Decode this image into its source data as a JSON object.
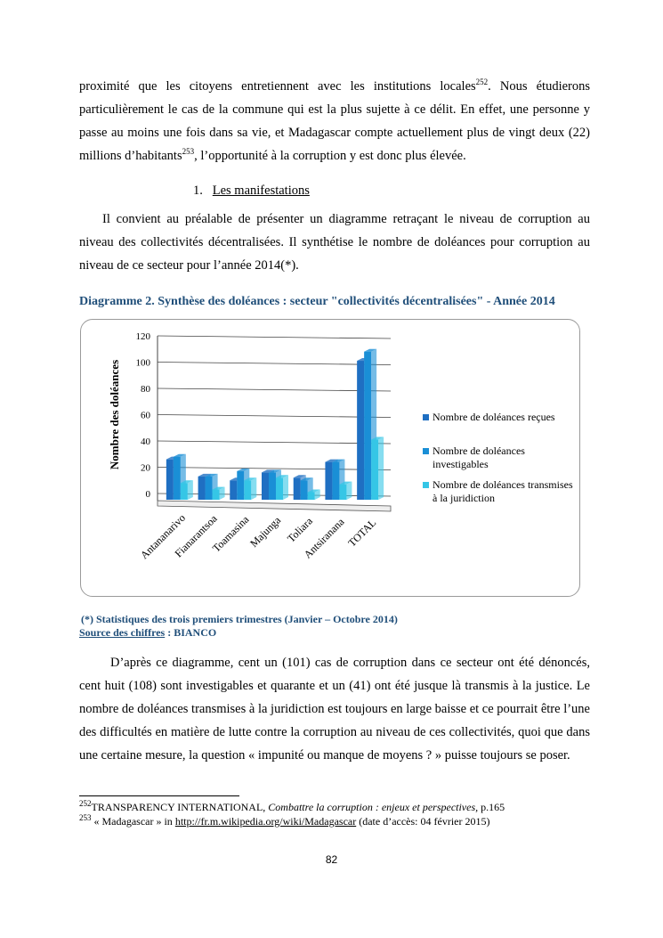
{
  "intro": {
    "text_1": "proximité que les citoyens entretiennent avec les institutions locales",
    "sup_1": "252",
    "text_2": ". Nous étudierons particulièrement le cas de la commune qui est la plus sujette à ce délit. En effet,  une personne y passe au moins une fois dans sa vie, et Madagascar compte actuellement plus de vingt deux (22) millions d’habitants",
    "sup_2": "253",
    "text_3": ", l’opportunité à la corruption y est donc plus élevée."
  },
  "heading": {
    "number": "1.",
    "title": "Les manifestations"
  },
  "paragraph_2": "Il convient au préalable de présenter un diagramme retraçant le niveau de corruption au niveau des collectivités décentralisées. Il synthétise le nombre de doléances pour corruption au niveau de ce secteur pour l’année 2014(*).",
  "caption": "Diagramme 2. Synthèse des doléances : secteur \"collectivités décentralisées\" - Année 2014",
  "chart_data": {
    "type": "bar3d",
    "y_label": "Nombre des doléances",
    "categories": [
      "Antananarivo",
      "Fianarantsoa",
      "Toamasina",
      "Majunga",
      "Toliara",
      "Antsiranana",
      "TOTAL"
    ],
    "series": [
      {
        "name": "Nombre de doléances reçues",
        "color": "#1f6fc2",
        "values": [
          26,
          13,
          10,
          16,
          12,
          24,
          101
        ]
      },
      {
        "name": "Nombre de doléances investigables",
        "color": "#1a8fd6",
        "values": [
          28,
          13,
          17,
          16,
          10,
          24,
          108
        ]
      },
      {
        "name": "Nombre de doléances transmises à la juridiction",
        "color": "#35c6e6",
        "values": [
          8,
          3,
          10,
          12,
          1,
          7,
          41
        ]
      }
    ],
    "ylim": [
      0,
      120
    ],
    "yticks": [
      0,
      20,
      40,
      60,
      80,
      100,
      120
    ],
    "grid": true,
    "legend": "right"
  },
  "note": "(*) Statistiques des trois premiers trimestres (Janvier – Octobre 2014)",
  "source": {
    "label": "Source des chiffres",
    "text": " : BIANCO"
  },
  "paragraph_3": "D’après ce diagramme, cent un (101) cas de corruption dans ce secteur ont été dénoncés, cent huit (108) sont investigables et quarante et un (41) ont été jusque là transmis à la justice. Le nombre de doléances transmises à la juridiction est toujours en large baisse et ce pourrait être l’une des difficultés en matière de lutte contre la corruption au niveau de ces collectivités, quoi que dans une certaine mesure, la question « impunité ou manque de moyens ? » puisse toujours se poser.",
  "footnotes": [
    {
      "number": "252",
      "text_1": "TRANSPARENCY INTERNATIONAL, ",
      "title": "Combattre la corruption : enjeux et perspectives,",
      "text_2": " p.165"
    },
    {
      "number": "253",
      "text_1": " « Madagascar » in ",
      "link": "http://fr.m.wikipedia.org/wiki/Madagascar",
      "text_2": " (date d’accès: 04 février 2015)"
    }
  ],
  "page_number": "82"
}
